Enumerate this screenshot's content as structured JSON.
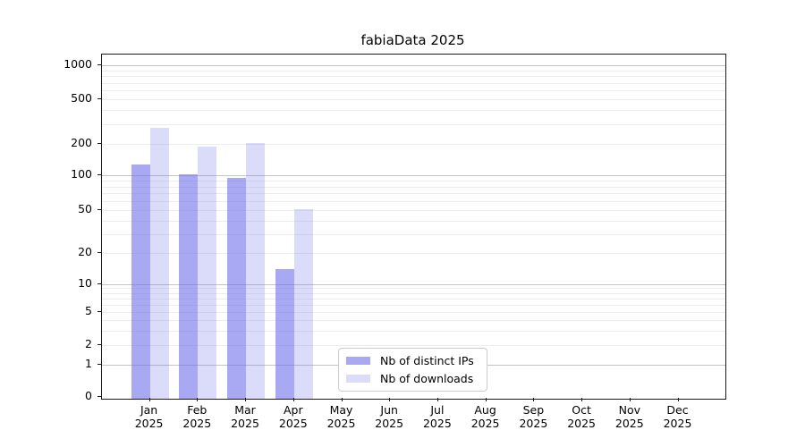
{
  "chart_data": {
    "type": "bar",
    "title": "fabiaData 2025",
    "xlabel": "",
    "ylabel": "",
    "categories": [
      "Jan 2025",
      "Feb 2025",
      "Mar 2025",
      "Apr 2025",
      "May 2025",
      "Jun 2025",
      "Jul 2025",
      "Aug 2025",
      "Sep 2025",
      "Oct 2025",
      "Nov 2025",
      "Dec 2025"
    ],
    "x_tick_labels": [
      {
        "month": "Jan",
        "year": "2025"
      },
      {
        "month": "Feb",
        "year": "2025"
      },
      {
        "month": "Mar",
        "year": "2025"
      },
      {
        "month": "Apr",
        "year": "2025"
      },
      {
        "month": "May",
        "year": "2025"
      },
      {
        "month": "Jun",
        "year": "2025"
      },
      {
        "month": "Jul",
        "year": "2025"
      },
      {
        "month": "Aug",
        "year": "2025"
      },
      {
        "month": "Sep",
        "year": "2025"
      },
      {
        "month": "Oct",
        "year": "2025"
      },
      {
        "month": "Nov",
        "year": "2025"
      },
      {
        "month": "Dec",
        "year": "2025"
      }
    ],
    "series": [
      {
        "name": "Nb of distinct IPs",
        "color": "rgba(110,110,235,0.60)",
        "values": [
          127,
          102,
          96,
          14,
          0,
          0,
          0,
          0,
          0,
          0,
          0,
          0
        ]
      },
      {
        "name": "Nb of downloads",
        "color": "rgba(110,110,235,0.25)",
        "values": [
          277,
          190,
          203,
          51,
          0,
          0,
          0,
          0,
          0,
          0,
          0,
          0
        ]
      }
    ],
    "y_axis": {
      "scale": "log-like (0 then log decades)",
      "ticks": [
        0,
        1,
        2,
        5,
        10,
        20,
        50,
        100,
        200,
        500,
        1000
      ],
      "ylim": [
        0,
        1260
      ]
    },
    "legend": {
      "position": "lower center of plot",
      "entries": [
        "Nb of distinct IPs",
        "Nb of downloads"
      ]
    },
    "grid": {
      "major_values": [
        1,
        10,
        100,
        1000
      ],
      "major_color": "#c4c4c4",
      "minor_color": "#ececec",
      "orientation": "horizontal"
    },
    "colors": {
      "spine": "#1a1a1a",
      "background": "#ffffff",
      "text": "#000000"
    }
  }
}
